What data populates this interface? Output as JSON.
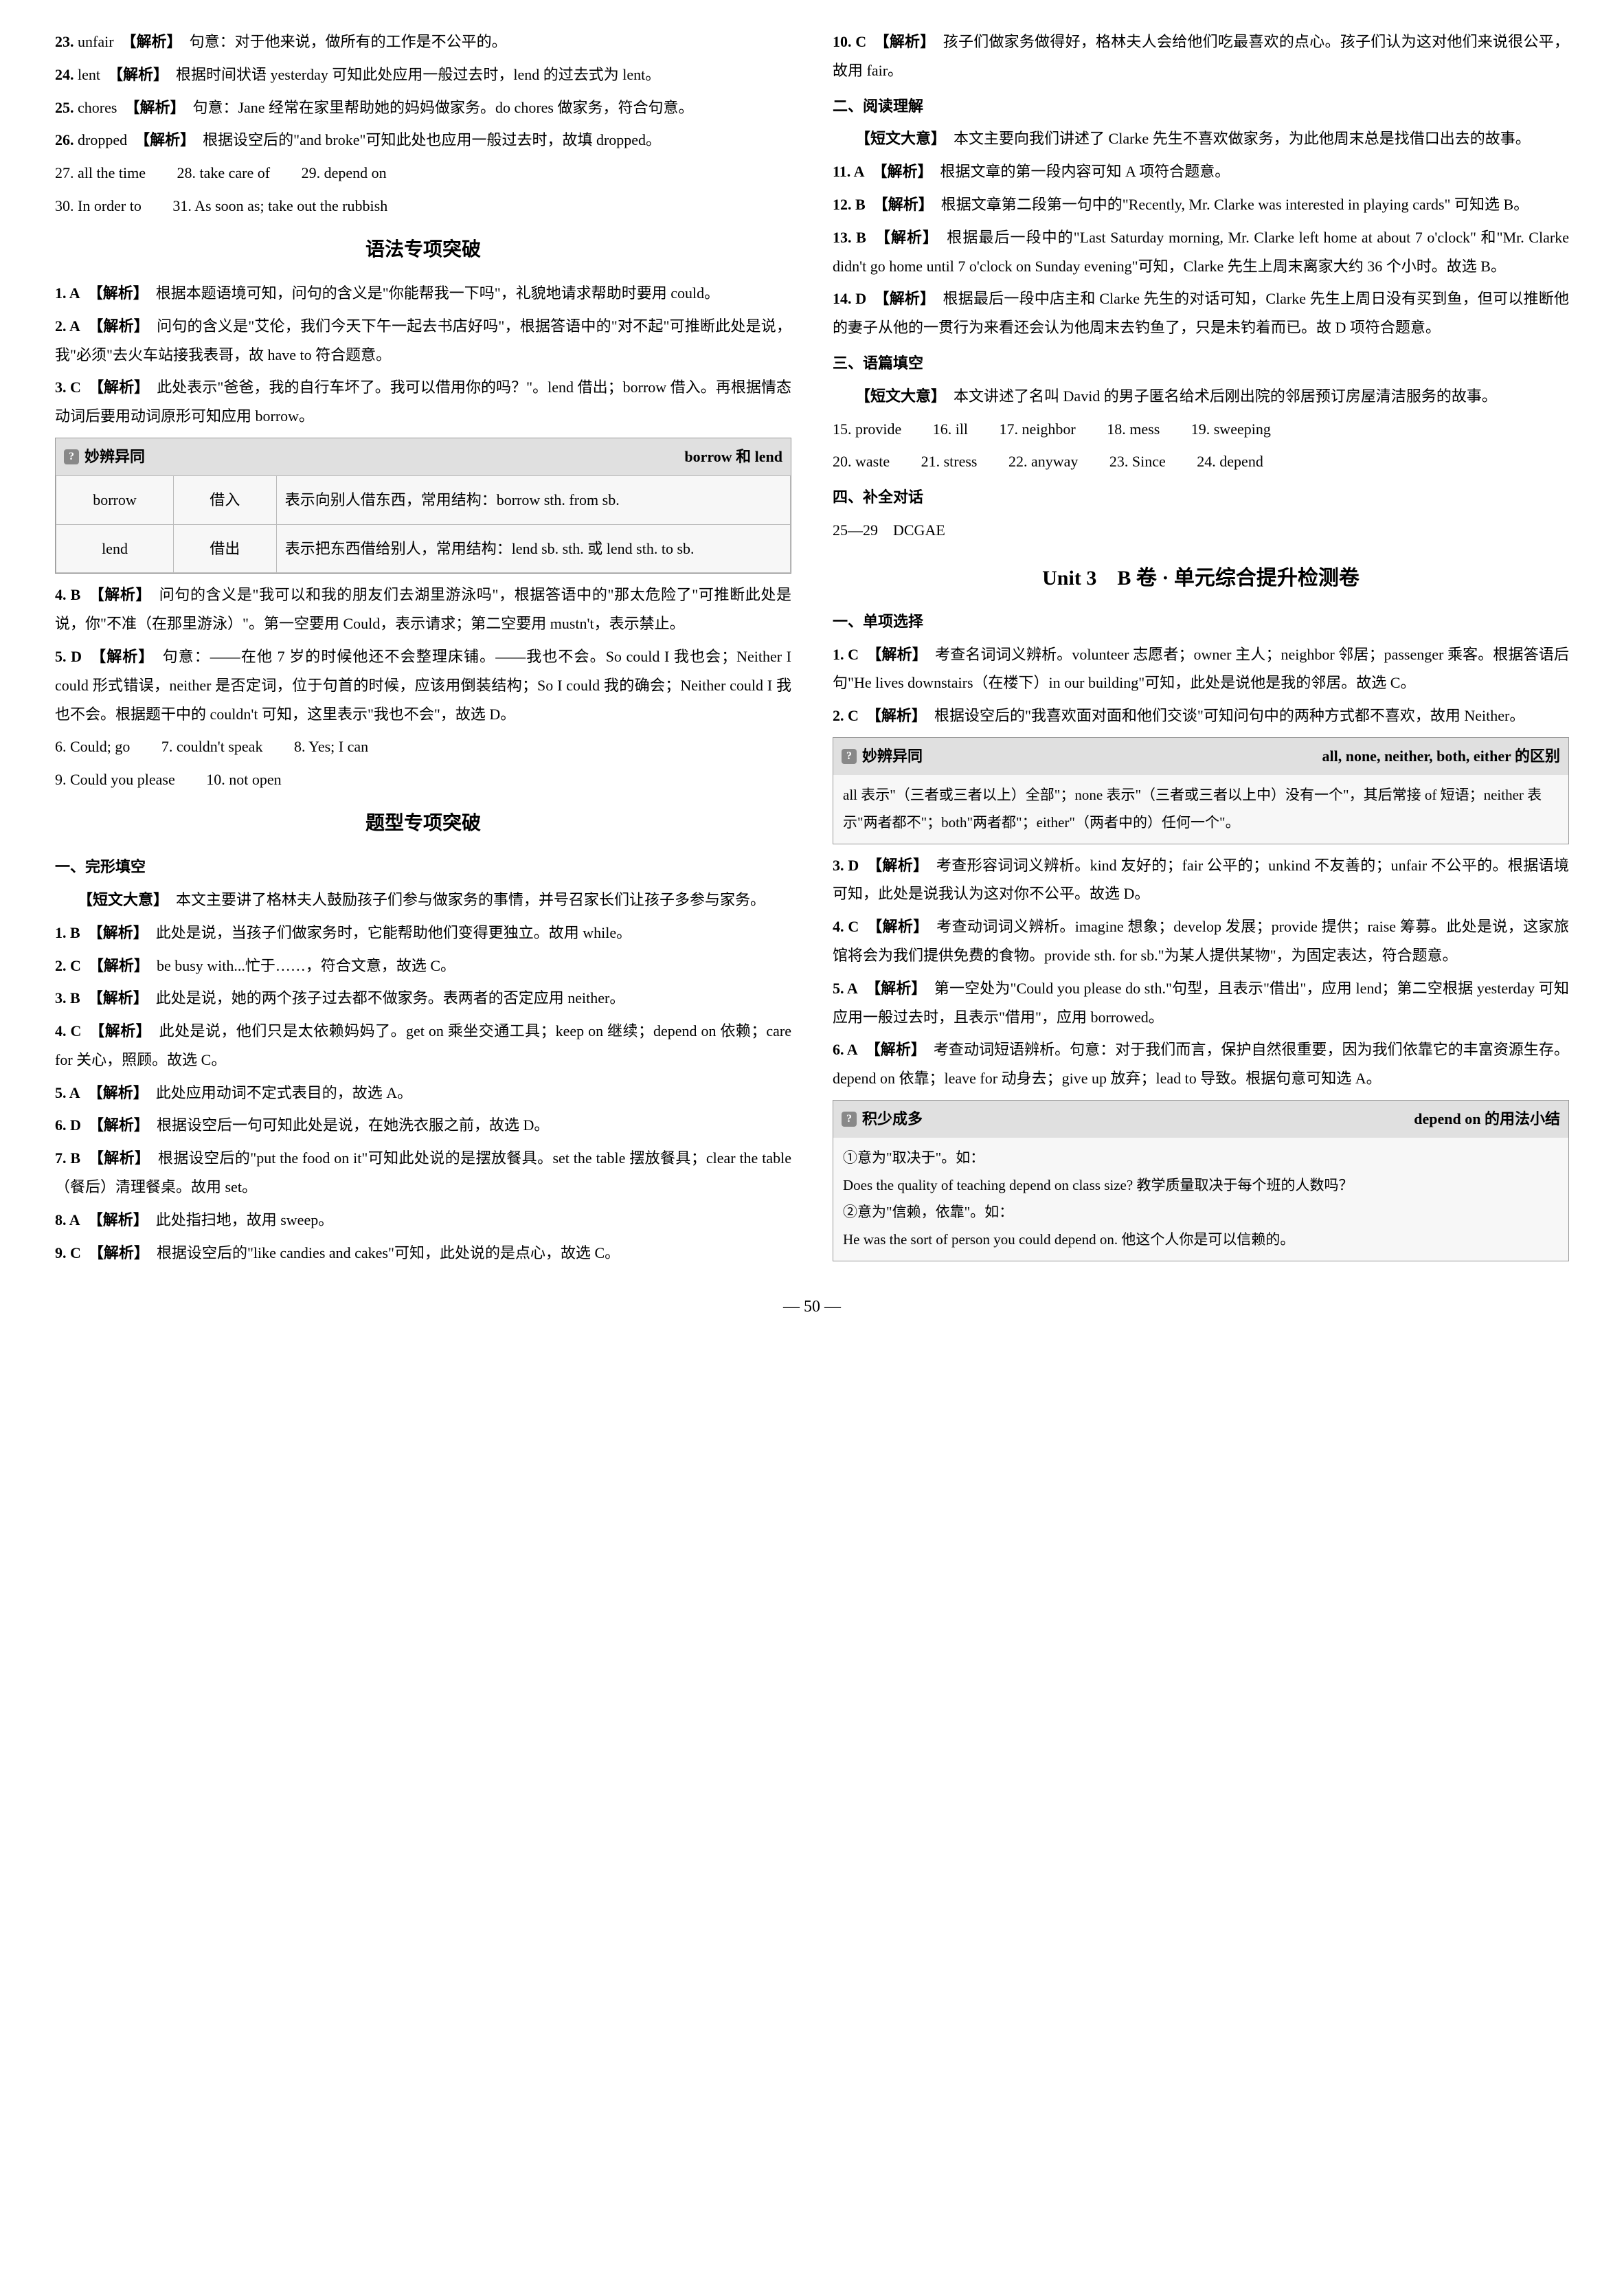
{
  "left": {
    "e23": {
      "num": "23.",
      "ans": "unfair",
      "tag": "【解析】",
      "txt": "句意：对于他来说，做所有的工作是不公平的。"
    },
    "e24": {
      "num": "24.",
      "ans": "lent",
      "tag": "【解析】",
      "txt": "根据时间状语 yesterday 可知此处应用一般过去时，lend 的过去式为 lent。"
    },
    "e25": {
      "num": "25.",
      "ans": "chores",
      "tag": "【解析】",
      "txt": "句意：Jane 经常在家里帮助她的妈妈做家务。do chores 做家务，符合句意。"
    },
    "e26": {
      "num": "26.",
      "ans": "dropped",
      "tag": "【解析】",
      "txt": "根据设空后的\"and broke\"可知此处也应用一般过去时，故填 dropped。"
    },
    "row1": {
      "a": "27. all the time",
      "b": "28. take care of",
      "c": "29. depend on"
    },
    "row2": {
      "a": "30. In order to",
      "b": "31. As soon as; take out the rubbish"
    },
    "grammar_title": "语法专项突破",
    "g1": {
      "num": "1. A",
      "tag": "【解析】",
      "txt": "根据本题语境可知，问句的含义是\"你能帮我一下吗\"，礼貌地请求帮助时要用 could。"
    },
    "g2": {
      "num": "2. A",
      "tag": "【解析】",
      "txt": "问句的含义是\"艾伦，我们今天下午一起去书店好吗\"，根据答语中的\"对不起\"可推断此处是说，我\"必须\"去火车站接我表哥，故 have to 符合题意。"
    },
    "g3": {
      "num": "3. C",
      "tag": "【解析】",
      "txt": "此处表示\"爸爸，我的自行车坏了。我可以借用你的吗？\"。lend 借出；borrow 借入。再根据情态动词后要用动词原形可知应用 borrow。"
    },
    "box3": {
      "icon": "?",
      "label": "妙辨异同",
      "sub": "borrow 和 lend",
      "rows": [
        {
          "w": "borrow",
          "zh": "借入",
          "desc": "表示向别人借东西，常用结构：borrow sth. from sb."
        },
        {
          "w": "lend",
          "zh": "借出",
          "desc": "表示把东西借给别人，常用结构：lend sb. sth. 或 lend sth. to sb."
        }
      ]
    },
    "g4": {
      "num": "4. B",
      "tag": "【解析】",
      "txt": "问句的含义是\"我可以和我的朋友们去湖里游泳吗\"，根据答语中的\"那太危险了\"可推断此处是说，你\"不准（在那里游泳）\"。第一空要用 Could，表示请求；第二空要用 mustn't，表示禁止。"
    },
    "g5": {
      "num": "5. D",
      "tag": "【解析】",
      "txt": "句意：——在他 7 岁的时候他还不会整理床铺。——我也不会。So could I 我也会；Neither I could 形式错误，neither 是否定词，位于句首的时候，应该用倒装结构；So I could 我的确会；Neither could I 我也不会。根据题干中的 couldn't 可知，这里表示\"我也不会\"，故选 D。"
    },
    "grow1": {
      "a": "6. Could; go",
      "b": "7. couldn't speak",
      "c": "8. Yes; I can"
    },
    "grow2": {
      "a": "9. Could you please",
      "b": "10. not open"
    },
    "topic_title": "题型专项突破",
    "cloze_head": "一、完形填空",
    "cloze_gist_label": "【短文大意】",
    "cloze_gist": "本文主要讲了格林夫人鼓励孩子们参与做家务的事情，并号召家长们让孩子多参与家务。",
    "c1": {
      "num": "1. B",
      "tag": "【解析】",
      "txt": "此处是说，当孩子们做家务时，它能帮助他们变得更独立。故用 while。"
    },
    "c2": {
      "num": "2. C",
      "tag": "【解析】",
      "txt": "be busy with...忙于……，符合文意，故选 C。"
    },
    "c3": {
      "num": "3. B",
      "tag": "【解析】",
      "txt": "此处是说，她的两个孩子过去都不做家务。表两者的否定应用 neither。"
    },
    "c4": {
      "num": "4. C",
      "tag": "【解析】",
      "txt": "此处是说，他们只是太依赖妈妈了。get on 乘坐交通工具；keep on 继续；depend on 依赖；care for 关心，照顾。故选 C。"
    },
    "c5": {
      "num": "5. A",
      "tag": "【解析】",
      "txt": "此处应用动词不定式表目的，故选 A。"
    },
    "c6": {
      "num": "6. D",
      "tag": "【解析】",
      "txt": "根据设空后一句可知此处是说，在她洗衣服之前，故选 D。"
    },
    "c7": {
      "num": "7. B",
      "tag": "【解析】",
      "txt": "根据设空后的\"put the food on it\"可知此处说的是摆放餐具。set the table 摆放餐具；clear the table（餐后）清理餐桌。故用 set。"
    },
    "c8": {
      "num": "8. A",
      "tag": "【解析】",
      "txt": "此处指扫地，故用 sweep。"
    },
    "c9": {
      "num": "9. C",
      "tag": "【解析】",
      "txt": "根据设空后的\"like candies and cakes\"可知，此处说的是点心，故选 C。"
    }
  },
  "right": {
    "c10": {
      "num": "10. C",
      "tag": "【解析】",
      "txt": "孩子们做家务做得好，格林夫人会给他们吃最喜欢的点心。孩子们认为这对他们来说很公平，故用 fair。"
    },
    "read_head": "二、阅读理解",
    "read_gist_label": "【短文大意】",
    "read_gist": "本文主要向我们讲述了 Clarke 先生不喜欢做家务，为此他周末总是找借口出去的故事。",
    "r11": {
      "num": "11. A",
      "tag": "【解析】",
      "txt": "根据文章的第一段内容可知 A 项符合题意。"
    },
    "r12": {
      "num": "12. B",
      "tag": "【解析】",
      "txt": "根据文章第二段第一句中的\"Recently, Mr. Clarke was interested in playing cards\" 可知选 B。"
    },
    "r13": {
      "num": "13. B",
      "tag": "【解析】",
      "txt": "根据最后一段中的\"Last Saturday morning, Mr. Clarke left home at about 7 o'clock\" 和\"Mr. Clarke didn't go home until 7 o'clock on Sunday evening\"可知，Clarke 先生上周末离家大约 36 个小时。故选 B。"
    },
    "r14": {
      "num": "14. D",
      "tag": "【解析】",
      "txt": "根据最后一段中店主和 Clarke 先生的对话可知，Clarke 先生上周日没有买到鱼，但可以推断他的妻子从他的一贯行为来看还会认为他周末去钓鱼了，只是未钓着而已。故 D 项符合题意。"
    },
    "fill_head": "三、语篇填空",
    "fill_gist_label": "【短文大意】",
    "fill_gist": "本文讲述了名叫 David 的男子匿名给术后刚出院的邻居预订房屋清洁服务的故事。",
    "frow1": {
      "a": "15. provide",
      "b": "16. ill",
      "c": "17. neighbor",
      "d": "18. mess",
      "e": "19. sweeping"
    },
    "frow2": {
      "a": "20. waste",
      "b": "21. stress",
      "c": "22. anyway",
      "d": "23. Since",
      "e": "24. depend"
    },
    "dlg_head": "四、补全对话",
    "dlg": "25—29　DCGAE",
    "unit_title": "Unit 3　B 卷 · 单元综合提升检测卷",
    "sc_head": "一、单项选择",
    "s1": {
      "num": "1. C",
      "tag": "【解析】",
      "txt": "考查名词词义辨析。volunteer 志愿者；owner 主人；neighbor 邻居；passenger 乘客。根据答语后句\"He lives downstairs（在楼下）in our building\"可知，此处是说他是我的邻居。故选 C。"
    },
    "s2": {
      "num": "2. C",
      "tag": "【解析】",
      "txt": "根据设空后的\"我喜欢面对面和他们交谈\"可知问句中的两种方式都不喜欢，故用 Neither。"
    },
    "box2": {
      "icon": "?",
      "label": "妙辨异同",
      "sub": "all, none, neither, both, either 的区别",
      "body": "all 表示\"（三者或三者以上）全部\"；none 表示\"（三者或三者以上中）没有一个\"，其后常接 of 短语；neither 表示\"两者都不\"；both\"两者都\"；either\"（两者中的）任何一个\"。"
    },
    "s3": {
      "num": "3. D",
      "tag": "【解析】",
      "txt": "考查形容词词义辨析。kind 友好的；fair 公平的；unkind 不友善的；unfair 不公平的。根据语境可知，此处是说我认为这对你不公平。故选 D。"
    },
    "s4": {
      "num": "4. C",
      "tag": "【解析】",
      "txt": "考查动词词义辨析。imagine 想象；develop 发展；provide 提供；raise 筹募。此处是说，这家旅馆将会为我们提供免费的食物。provide sth. for sb.\"为某人提供某物\"，为固定表达，符合题意。"
    },
    "s5": {
      "num": "5. A",
      "tag": "【解析】",
      "txt": "第一空处为\"Could you please do sth.\"句型，且表示\"借出\"，应用 lend；第二空根据 yesterday 可知应用一般过去时，且表示\"借用\"，应用 borrowed。"
    },
    "s6": {
      "num": "6. A",
      "tag": "【解析】",
      "txt": "考查动词短语辨析。句意：对于我们而言，保护自然很重要，因为我们依靠它的丰富资源生存。depend on 依靠；leave for 动身去；give up 放弃；lead to 导致。根据句意可知选 A。"
    },
    "box6": {
      "icon": "?",
      "label": "积少成多",
      "sub": "depend on 的用法小结",
      "l1": "①意为\"取决于\"。如：",
      "l2": "Does the quality of teaching depend on class size? 教学质量取决于每个班的人数吗？",
      "l3": "②意为\"信赖，依靠\"。如：",
      "l4": "He was the sort of person you could depend on. 他这个人你是可以信赖的。"
    }
  },
  "page_number": "— 50 —",
  "colors": {
    "bg": "#ffffff",
    "text": "#000000",
    "box_bg": "#f7f7f7",
    "box_hdr": "#e0e0e0",
    "border": "#999"
  }
}
